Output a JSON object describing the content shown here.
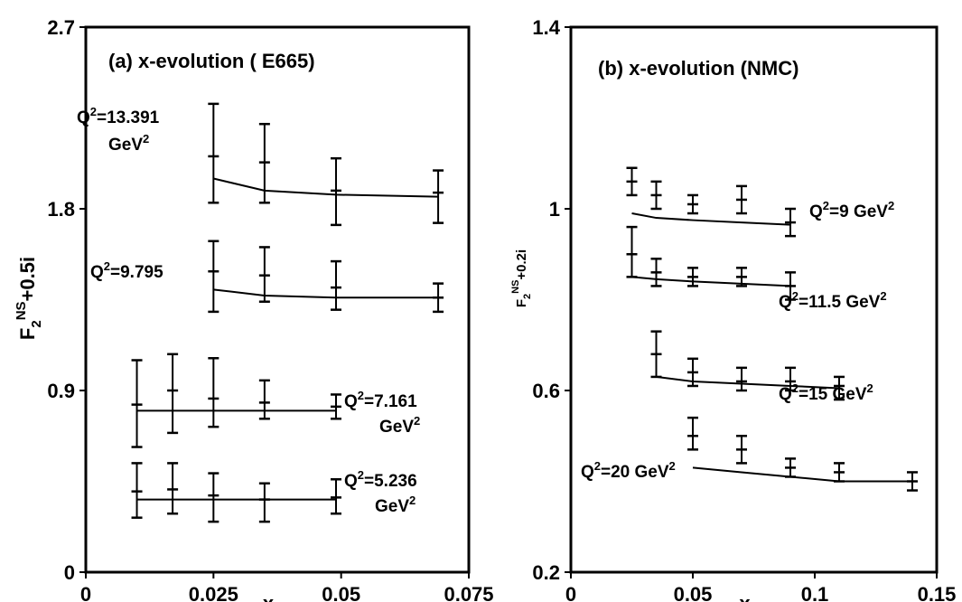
{
  "chart_data": [
    {
      "type": "scatter",
      "title": "(a) x-evolution ( E665)",
      "xlabel": "x",
      "ylabel": "F2NS+0.5i",
      "ylabel_parts": {
        "base": "F",
        "sub": "2",
        "sup": "NS",
        "tail": "+0.5i"
      },
      "xlim": [
        0,
        0.075
      ],
      "ylim": [
        0,
        2.7
      ],
      "xticks": [
        "0",
        "0.025",
        "0.05",
        "0.075"
      ],
      "yticks": [
        "0",
        "0.9",
        "1.8",
        "2.7"
      ],
      "xtick_values": [
        0,
        0.025,
        0.05,
        0.075
      ],
      "ytick_values": [
        0,
        0.9,
        1.8,
        2.7
      ],
      "grid": false,
      "series": [
        {
          "label_lines": [
            [
              "Q",
              "2",
              "=13.391"
            ],
            [
              "GeV",
              "2",
              ""
            ]
          ],
          "x": [
            0.025,
            0.035,
            0.049,
            0.069
          ],
          "y": [
            2.06,
            2.03,
            1.89,
            1.88
          ],
          "err_low": [
            1.83,
            1.83,
            1.72,
            1.73
          ],
          "err_high": [
            2.32,
            2.22,
            2.05,
            1.99
          ],
          "fit_x": [
            0.025,
            0.035,
            0.049,
            0.069
          ],
          "fit_y": [
            1.95,
            1.89,
            1.87,
            1.86
          ]
        },
        {
          "label_lines": [
            [
              "Q",
              "2",
              "=9.795"
            ]
          ],
          "x": [
            0.025,
            0.035,
            0.049,
            0.069
          ],
          "y": [
            1.49,
            1.47,
            1.41,
            1.36
          ],
          "err_low": [
            1.29,
            1.34,
            1.3,
            1.29
          ],
          "err_high": [
            1.64,
            1.61,
            1.54,
            1.43
          ],
          "fit_x": [
            0.025,
            0.035,
            0.049,
            0.069
          ],
          "fit_y": [
            1.4,
            1.37,
            1.36,
            1.36
          ]
        },
        {
          "label_lines": [
            [
              "Q",
              "2",
              "=7.161"
            ],
            [
              "GeV",
              "2",
              ""
            ]
          ],
          "x": [
            0.01,
            0.017,
            0.025,
            0.035,
            0.049
          ],
          "y": [
            0.83,
            0.9,
            0.86,
            0.84,
            0.82
          ],
          "err_low": [
            0.62,
            0.69,
            0.72,
            0.76,
            0.76
          ],
          "err_high": [
            1.05,
            1.08,
            1.06,
            0.95,
            0.88
          ],
          "fit_x": [
            0.01,
            0.017,
            0.025,
            0.035,
            0.049
          ],
          "fit_y": [
            0.8,
            0.8,
            0.8,
            0.8,
            0.8
          ]
        },
        {
          "label_lines": [
            [
              "Q",
              "2",
              "=5.236"
            ],
            [
              "GeV",
              "2",
              ""
            ]
          ],
          "x": [
            0.01,
            0.017,
            0.025,
            0.035,
            0.049
          ],
          "y": [
            0.4,
            0.41,
            0.38,
            0.36,
            0.37
          ],
          "err_low": [
            0.27,
            0.29,
            0.25,
            0.25,
            0.29
          ],
          "err_high": [
            0.54,
            0.54,
            0.49,
            0.44,
            0.46
          ],
          "fit_x": [
            0.01,
            0.017,
            0.025,
            0.035,
            0.049
          ],
          "fit_y": [
            0.36,
            0.36,
            0.36,
            0.36,
            0.36
          ]
        }
      ]
    },
    {
      "type": "scatter",
      "title": "(b) x-evolution (NMC)",
      "xlabel": "x",
      "ylabel": "F2NS+0.2i",
      "ylabel_parts": {
        "base": "F",
        "sub": "2",
        "sup": "NS",
        "tail": "+0.2i"
      },
      "xlim": [
        0,
        0.15
      ],
      "ylim": [
        0.2,
        1.4
      ],
      "xticks": [
        "0",
        "0.05",
        "0.1",
        "0.15"
      ],
      "yticks": [
        "0.2",
        "0.6",
        "1",
        "1.4"
      ],
      "xtick_values": [
        0,
        0.05,
        0.1,
        0.15
      ],
      "ytick_values": [
        0.2,
        0.6,
        1.0,
        1.4
      ],
      "grid": false,
      "series": [
        {
          "label_lines": [
            [
              "Q",
              "2",
              "=9 GeV"
            ],
            [
              "",
              "2",
              ""
            ]
          ],
          "label_inline": true,
          "x": [
            0.025,
            0.035,
            0.05,
            0.07,
            0.09
          ],
          "y": [
            1.06,
            1.03,
            1.01,
            1.02,
            0.97
          ],
          "err_low": [
            1.03,
            1.0,
            0.99,
            0.99,
            0.94
          ],
          "err_high": [
            1.09,
            1.06,
            1.03,
            1.05,
            1.0
          ],
          "fit_x": [
            0.025,
            0.035,
            0.05,
            0.07,
            0.09
          ],
          "fit_y": [
            0.99,
            0.98,
            0.975,
            0.97,
            0.965
          ]
        },
        {
          "label_inline": true,
          "x": [
            0.025,
            0.035,
            0.05,
            0.07,
            0.09
          ],
          "y": [
            0.9,
            0.86,
            0.85,
            0.85,
            0.83
          ],
          "err_low": [
            0.85,
            0.83,
            0.83,
            0.83,
            0.8
          ],
          "err_high": [
            0.96,
            0.89,
            0.87,
            0.87,
            0.86
          ],
          "fit_x": [
            0.025,
            0.035,
            0.05,
            0.07,
            0.09
          ],
          "fit_y": [
            0.85,
            0.845,
            0.84,
            0.835,
            0.83
          ]
        },
        {
          "label_inline": true,
          "x": [
            0.035,
            0.05,
            0.07,
            0.09,
            0.11
          ],
          "y": [
            0.68,
            0.64,
            0.62,
            0.62,
            0.61
          ],
          "err_low": [
            0.63,
            0.61,
            0.6,
            0.6,
            0.58
          ],
          "err_high": [
            0.73,
            0.67,
            0.65,
            0.65,
            0.63
          ],
          "fit_x": [
            0.035,
            0.05,
            0.07,
            0.09,
            0.11
          ],
          "fit_y": [
            0.63,
            0.62,
            0.615,
            0.61,
            0.605
          ]
        },
        {
          "label_inline": true,
          "x": [
            0.05,
            0.07,
            0.09,
            0.11,
            0.14
          ],
          "y": [
            0.5,
            0.47,
            0.43,
            0.42,
            0.4
          ],
          "err_low": [
            0.47,
            0.44,
            0.41,
            0.4,
            0.38
          ],
          "err_high": [
            0.54,
            0.5,
            0.45,
            0.44,
            0.42
          ],
          "fit_x": [
            0.05,
            0.07,
            0.09,
            0.11,
            0.14
          ],
          "fit_y": [
            0.43,
            0.42,
            0.41,
            0.4,
            0.4
          ]
        }
      ],
      "series_labels": [
        {
          "pre": "Q",
          "sup": "2",
          "text": "=9 GeV",
          "sup2": "2"
        },
        {
          "pre": "Q",
          "sup": "2",
          "text": "=11.5 GeV",
          "sup2": "2"
        },
        {
          "pre": "Q",
          "sup": "2",
          "text": "=15 GeV",
          "sup2": "2"
        },
        {
          "pre": "Q",
          "sup": "2",
          "text": "=20 GeV",
          "sup2": "2"
        }
      ]
    }
  ]
}
